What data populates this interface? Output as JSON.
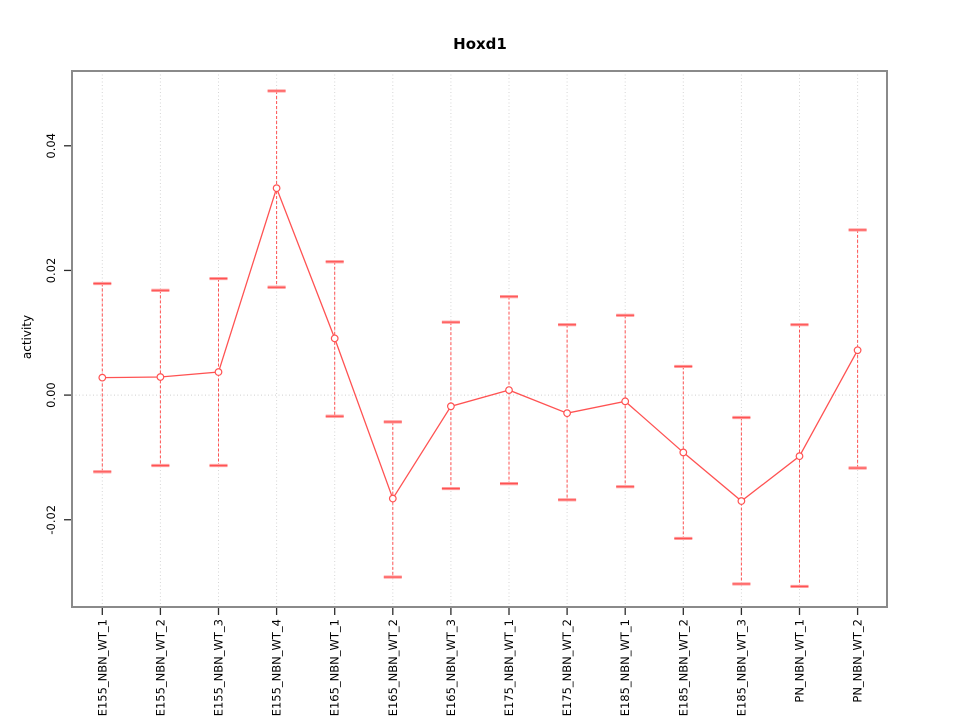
{
  "chart_data": {
    "type": "line",
    "title": "Hoxd1",
    "ylabel": "activity",
    "xlabel": "",
    "legend": null,
    "grid": "dotted vertical gridline per category plus dotted horizontal line at y=0",
    "ylim": [
      -0.034,
      0.052
    ],
    "yticks": {
      "values": [
        0.04,
        0.02,
        0.0,
        -0.02
      ],
      "labels": [
        "0.04",
        "0.02",
        "0.00",
        "-0.02"
      ]
    },
    "categories": [
      "E155_NBN_WT_1",
      "E155_NBN_WT_2",
      "E155_NBN_WT_3",
      "E155_NBN_WT_4",
      "E165_NBN_WT_1",
      "E165_NBN_WT_2",
      "E165_NBN_WT_3",
      "E175_NBN_WT_1",
      "E175_NBN_WT_2",
      "E185_NBN_WT_1",
      "E185_NBN_WT_2",
      "E185_NBN_WT_3",
      "PN_NBN_WT_1",
      "PN_NBN_WT_2"
    ],
    "series": [
      {
        "name": "activity",
        "marker": "open-circle",
        "values": [
          0.0028,
          0.0029,
          0.0037,
          0.0332,
          0.0091,
          -0.0166,
          -0.0018,
          0.0008,
          -0.0029,
          -0.001,
          -0.0092,
          -0.017,
          -0.0098,
          0.0072
        ],
        "error_low": [
          -0.0123,
          -0.0113,
          -0.0113,
          0.0173,
          -0.0034,
          -0.0292,
          -0.015,
          -0.0142,
          -0.0168,
          -0.0147,
          -0.023,
          -0.0303,
          -0.0307,
          -0.0117
        ],
        "error_high": [
          0.0179,
          0.0168,
          0.0187,
          0.0488,
          0.0214,
          -0.0043,
          0.0117,
          0.0158,
          0.0113,
          0.0128,
          0.0046,
          -0.0036,
          0.0113,
          0.0265
        ]
      }
    ],
    "colors": {
      "series": "#ff5252",
      "error_cap": "#ff9c9c",
      "marker_fill": "#ffffff",
      "gridline": "#d6d6d6",
      "zero_line": "#cfcfcf",
      "box_border": "#8a8a8a",
      "tick": "#2b2b2b",
      "text": "#000000",
      "background": "#ffffff"
    }
  }
}
